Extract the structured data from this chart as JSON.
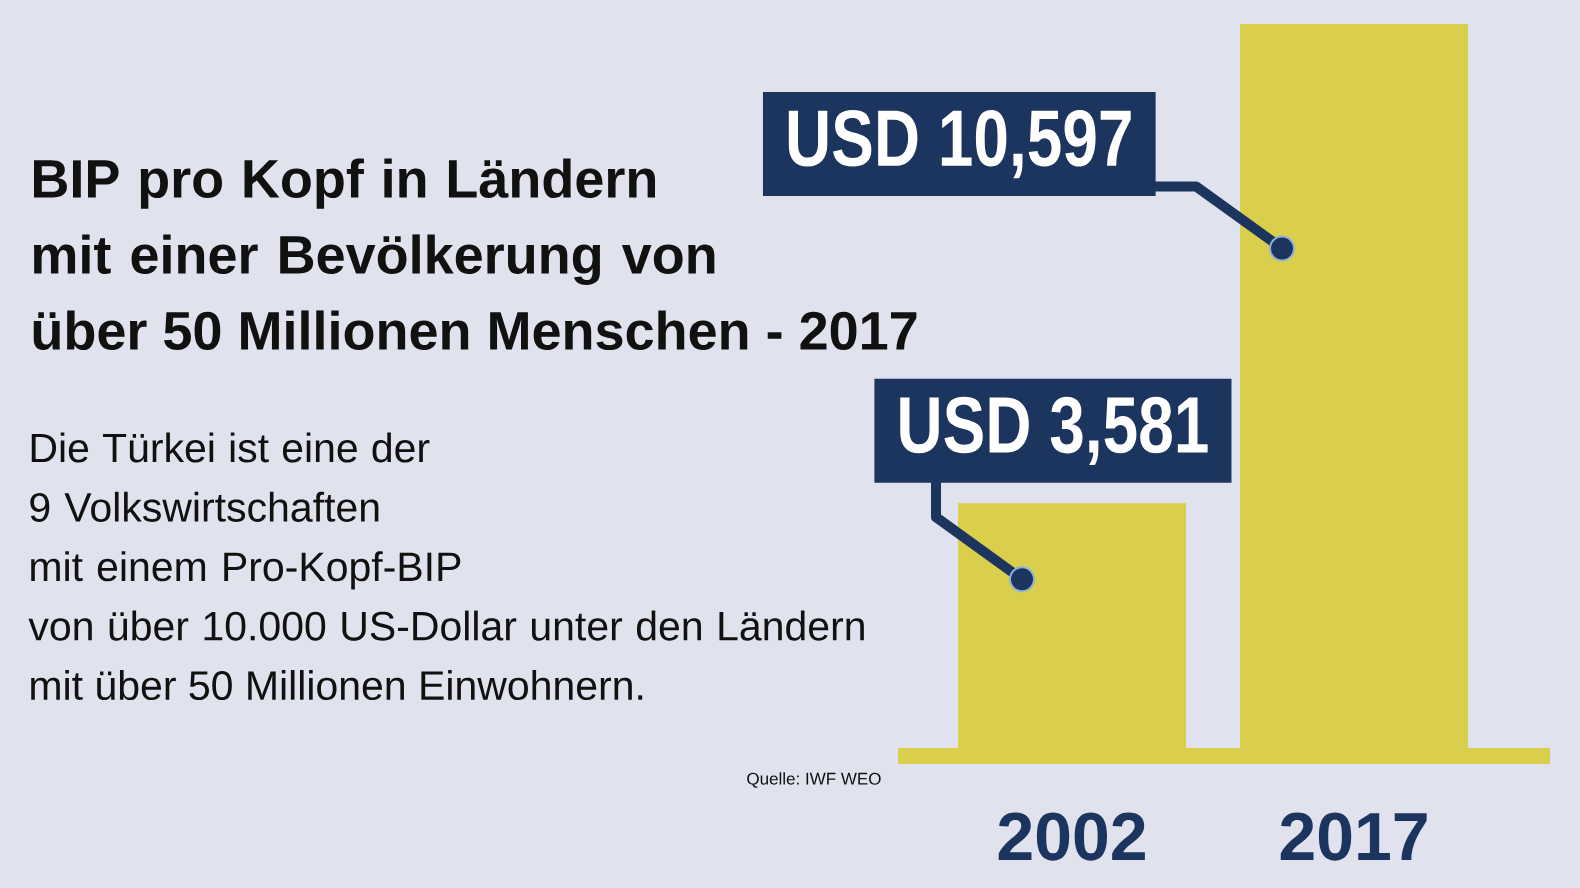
{
  "chart_data": {
    "type": "bar",
    "title": "BIP pro Kopf in Ländern mit einer Bevölkerung von über 50 Millionen Menschen - 2017",
    "subtitle": "Die Türkei ist eine der 9 Volkswirtschaften mit einem Pro-Kopf-BIP von über 10.000 US-Dollar unter den Ländern mit über 50 Millionen Einwohnern.",
    "annotations": [
      "Quelle: IWF WEO"
    ],
    "categories": [
      "2002",
      "2017"
    ],
    "values": [
      3581,
      10597
    ],
    "value_labels": [
      "USD 3,581",
      "USD 10,597"
    ],
    "color": "#dacf4c"
  }
}
